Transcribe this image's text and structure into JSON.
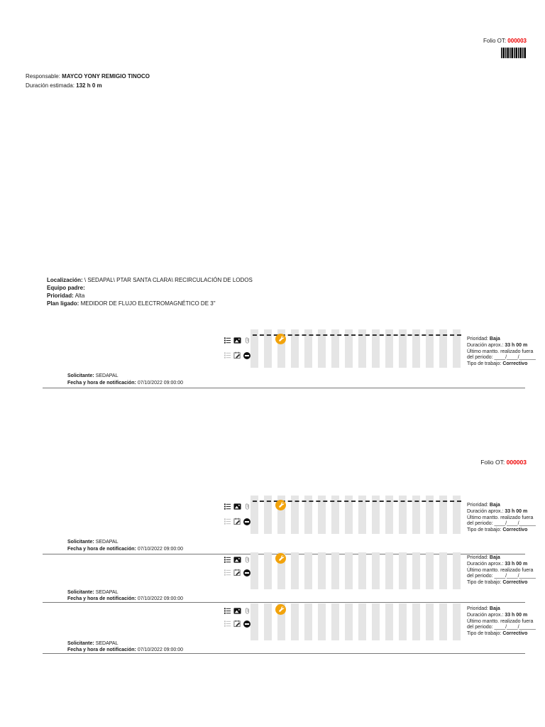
{
  "page1": {
    "folio_label": "Folio OT:",
    "folio_value": "000003",
    "responsable_label": "Responsable:",
    "responsable_value": "MAYCO YONY REMIGIO TINOCO",
    "duracion_estimada_label": "Duración estimada:",
    "duracion_estimada_value": "132 h 0 m",
    "localizacion_label": "Localización:",
    "localizacion_value": "\\ SEDAPAL\\ PTAR SANTA CLARA\\ RECIRCULACIÓN DE LODOS",
    "equipo_padre_label": "Equipo padre:",
    "prioridad_label": "Prioridad:",
    "prioridad_value": "Alta",
    "plan_ligado_label": "Plan ligado:",
    "plan_ligado_value": "MEDIDOR DE FLUJO ELECTROMAGNÉTICO DE 3\""
  },
  "page2": {
    "folio_label": "Folio OT:",
    "folio_value": "000003"
  },
  "rows": [
    {
      "prioridad_label": "Prioridad:",
      "prioridad_value": "Baja",
      "duracion_aprox_label": "Duración aprox.:",
      "duracion_aprox_value": "33 h 00 m",
      "ultimo_mantto_line1": "Último mantto. realizado fuera",
      "ultimo_mantto_line2": "del periodo: ____/____/______",
      "tipo_trabajo_label": "Tipo de trabajo:",
      "tipo_trabajo_value": "Correctivo",
      "solicitante_label": "Solicitante:",
      "solicitante_value": "SEDAPAL",
      "fecha_label": "Fecha y hora de notificación:",
      "fecha_value": "07/10/2022 09:00:00"
    },
    {
      "prioridad_label": "Prioridad:",
      "prioridad_value": "Baja",
      "duracion_aprox_label": "Duración aprox.:",
      "duracion_aprox_value": "33 h 00 m",
      "ultimo_mantto_line1": "Último mantto. realizado fuera",
      "ultimo_mantto_line2": "del periodo: ____/____/______",
      "tipo_trabajo_label": "Tipo de trabajo:",
      "tipo_trabajo_value": "Correctivo",
      "solicitante_label": "Solicitante:",
      "solicitante_value": "SEDAPAL",
      "fecha_label": "Fecha y hora de notificación:",
      "fecha_value": "07/10/2022 09:00:00"
    },
    {
      "prioridad_label": "Prioridad:",
      "prioridad_value": "Baja",
      "duracion_aprox_label": "Duración aprox.:",
      "duracion_aprox_value": "33 h 00 m",
      "ultimo_mantto_line1": "Último mantto. realizado fuera",
      "ultimo_mantto_line2": "del periodo: ____/____/______",
      "tipo_trabajo_label": "Tipo de trabajo:",
      "tipo_trabajo_value": "Correctivo",
      "solicitante_label": "Solicitante:",
      "solicitante_value": "SEDAPAL",
      "fecha_label": "Fecha y hora de notificación:",
      "fecha_value": "07/10/2022 09:00:00"
    },
    {
      "prioridad_label": "Prioridad:",
      "prioridad_value": "Baja",
      "duracion_aprox_label": "Duración aprox.:",
      "duracion_aprox_value": "33 h 00 m",
      "ultimo_mantto_line1": "Último mantto. realizado fuera",
      "ultimo_mantto_line2": "del periodo: ____/____/______",
      "tipo_trabajo_label": "Tipo de trabajo:",
      "tipo_trabajo_value": "Correctivo",
      "solicitante_label": "Solicitante:",
      "solicitante_value": "SEDAPAL",
      "fecha_label": "Fecha y hora de notificación:",
      "fecha_value": "07/10/2022 09:00:00"
    }
  ],
  "icons": {
    "details-list-icon": "list",
    "image-icon": "photo",
    "paperclip-icon": "attachment",
    "tasks-list-icon": "list-gray",
    "calendar-edit-icon": "calendar-pencil",
    "blocked-icon": "no-entry",
    "wrench-marker-icon": "wrench",
    "barcode": "code-stripes"
  },
  "colors": {
    "folio_number": "#ee0000",
    "wrench_badge": "#F2A30B",
    "gantt_bar": "#e5e5e5"
  }
}
